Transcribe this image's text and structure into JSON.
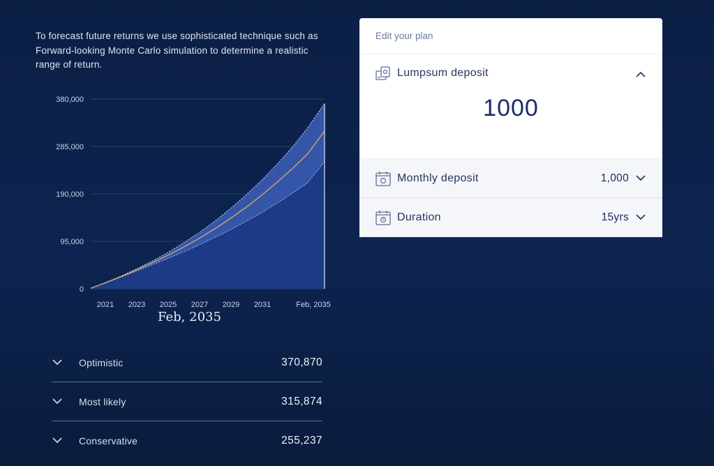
{
  "intro": {
    "text": "To forecast future returns we use sophisticated technique such as Forward-looking Monte Carlo simulation to determine a realistic range of return."
  },
  "chart_caption": "Feb, 2035",
  "chart_data": {
    "type": "area",
    "x_labels": [
      "2021",
      "2023",
      "2025",
      "2027",
      "2029",
      "2031",
      "Feb, 2035"
    ],
    "y_ticks": [
      0,
      95000,
      190000,
      285000,
      380000
    ],
    "y_tick_labels": [
      "0",
      "95,000",
      "190,000",
      "285,000",
      "380,000"
    ],
    "ylim": [
      0,
      380000
    ],
    "x": [
      2020,
      2021,
      2022,
      2023,
      2024,
      2025,
      2026,
      2027,
      2028,
      2029,
      2030,
      2031,
      2032,
      2033,
      2034,
      2035.1
    ],
    "series": [
      {
        "name": "Optimistic",
        "values": [
          1000,
          13000,
          26000,
          40500,
          56000,
          73000,
          92000,
          112500,
          135000,
          160000,
          187000,
          216000,
          248000,
          283000,
          322000,
          370870
        ]
      },
      {
        "name": "Most likely",
        "values": [
          1000,
          12800,
          25000,
          38500,
          52500,
          67500,
          83500,
          101000,
          120000,
          140500,
          162500,
          186500,
          212500,
          240000,
          270000,
          315874
        ]
      },
      {
        "name": "Conservative",
        "values": [
          1000,
          12500,
          24000,
          36000,
          48500,
          61000,
          74000,
          88000,
          102500,
          118000,
          134500,
          152000,
          171000,
          191000,
          212000,
          255237
        ]
      }
    ],
    "colors": {
      "band": "#3556a8",
      "base": "#1d3a86",
      "median": "#d9a86c",
      "grid": "#2a3f6e"
    }
  },
  "scenarios": [
    {
      "label": "Optimistic",
      "value": "370,870"
    },
    {
      "label": "Most likely",
      "value": "315,874"
    },
    {
      "label": "Conservative",
      "value": "255,237"
    }
  ],
  "panel": {
    "header": "Edit your plan",
    "lumpsum": {
      "title": "Lumpsum deposit",
      "value": "1000",
      "slider_fraction": 0.22,
      "icon": "money-deposit-icon"
    },
    "monthly": {
      "title": "Monthly deposit",
      "value": "1,000",
      "icon": "calendar-coin-icon"
    },
    "duration": {
      "title": "Duration",
      "value": "15yrs",
      "icon": "calendar-clock-icon"
    }
  }
}
